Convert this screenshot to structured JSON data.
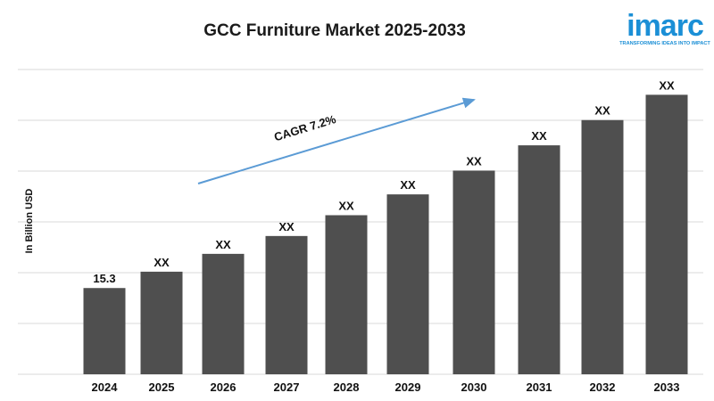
{
  "header": {
    "title": "GCC Furniture Market 2025-2033"
  },
  "logo": {
    "brand": "imarc",
    "tagline": "TRANSFORMING IDEAS INTO IMPACT",
    "color": "#1b8fd6"
  },
  "annotation": {
    "cagr_label": "CAGR 7.2%",
    "arrow_color": "#5b9bd5"
  },
  "chart_data": {
    "type": "bar",
    "title": "GCC Furniture Market 2025-2033",
    "xlabel": "",
    "ylabel": "In Billion USD",
    "categories": [
      "2024",
      "2025",
      "2026",
      "2027",
      "2028",
      "2029",
      "2030",
      "2031",
      "2032",
      "2033"
    ],
    "values": [
      15.3,
      16.4,
      17.6,
      18.8,
      20.2,
      21.6,
      23.2,
      24.9,
      26.6,
      28.3
    ],
    "data_labels": [
      "15.3",
      "XX",
      "XX",
      "XX",
      "XX",
      "XX",
      "XX",
      "XX",
      "XX",
      "XX"
    ],
    "ylim": [
      9.5,
      30
    ],
    "grid": true,
    "bar_color": "#4f4f4f",
    "legend": "none"
  }
}
